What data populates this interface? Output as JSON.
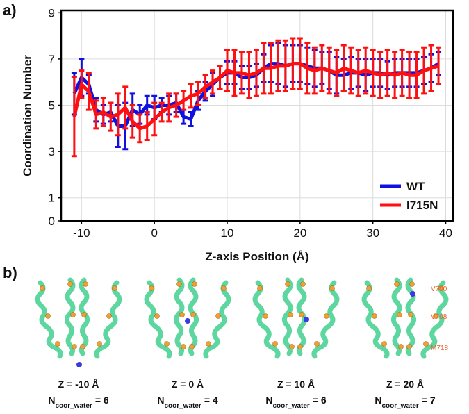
{
  "chart_data": {
    "type": "line",
    "panel_label": "a)",
    "xlabel": "Z-axis Position (Å)",
    "ylabel": "Coordination Number",
    "x": [
      -11,
      -10,
      -9,
      -8,
      -7,
      -6,
      -5,
      -4,
      -3,
      -2,
      -1,
      0,
      1,
      2,
      3,
      4,
      5,
      6,
      7,
      8,
      9,
      10,
      11,
      12,
      13,
      14,
      15,
      16,
      17,
      18,
      19,
      20,
      21,
      22,
      23,
      24,
      25,
      26,
      27,
      28,
      29,
      30,
      31,
      32,
      33,
      34,
      35,
      36,
      37,
      38,
      39
    ],
    "xlim": [
      -12.8,
      41
    ],
    "xticks": [
      -10,
      0,
      10,
      20,
      30,
      40
    ],
    "ylim": [
      0,
      9.1
    ],
    "yticks": [
      0,
      1,
      3,
      5,
      7,
      9
    ],
    "grid": true,
    "legend": "lower right",
    "series": [
      {
        "name": "WT",
        "color": "#1010e0",
        "values": [
          5.5,
          6.2,
          5.9,
          4.8,
          4.6,
          4.7,
          4.1,
          4.1,
          4.8,
          4.6,
          5.0,
          4.9,
          5.0,
          5.0,
          5.1,
          4.5,
          4.4,
          5.2,
          5.6,
          5.9,
          6.2,
          6.4,
          6.4,
          6.2,
          6.2,
          6.3,
          6.6,
          6.8,
          6.8,
          6.7,
          6.8,
          6.8,
          6.7,
          6.6,
          6.6,
          6.5,
          6.3,
          6.3,
          6.4,
          6.4,
          6.3,
          6.4,
          6.4,
          6.3,
          6.4,
          6.4,
          6.4,
          6.4,
          6.5,
          6.6,
          6.8
        ],
        "errors": [
          0.9,
          0.8,
          0.4,
          0.5,
          0.4,
          0.4,
          0.9,
          1.0,
          0.7,
          0.4,
          0.4,
          0.5,
          0.3,
          0.4,
          0.4,
          0.3,
          0.3,
          0.4,
          0.4,
          0.5,
          0.5,
          0.5,
          0.5,
          0.5,
          0.5,
          0.5,
          0.6,
          0.8,
          0.9,
          0.9,
          0.8,
          0.8,
          0.8,
          0.8,
          0.7,
          0.8,
          0.8,
          0.7,
          0.7,
          0.6,
          0.7,
          0.6,
          0.6,
          0.6,
          0.6,
          0.6,
          0.6,
          0.6,
          0.6,
          0.6,
          0.5
        ]
      },
      {
        "name": "I715N",
        "color": "#ff1010",
        "values": [
          4.5,
          5.9,
          5.6,
          4.6,
          4.7,
          4.5,
          4.6,
          4.9,
          4.3,
          4.0,
          4.1,
          4.4,
          4.7,
          4.9,
          5.0,
          5.2,
          5.4,
          5.5,
          5.8,
          6.0,
          6.2,
          6.5,
          6.4,
          6.4,
          6.3,
          6.4,
          6.6,
          6.6,
          6.7,
          6.7,
          6.8,
          6.8,
          6.6,
          6.5,
          6.6,
          6.5,
          6.4,
          6.6,
          6.5,
          6.4,
          6.5,
          6.4,
          6.3,
          6.4,
          6.3,
          6.4,
          6.3,
          6.3,
          6.5,
          6.6,
          6.7
        ],
        "errors": [
          1.7,
          0.6,
          0.8,
          0.6,
          0.6,
          0.6,
          0.9,
          0.9,
          0.7,
          0.6,
          0.6,
          0.7,
          0.4,
          0.6,
          0.5,
          0.4,
          0.5,
          0.5,
          0.5,
          0.5,
          0.5,
          0.9,
          1.0,
          0.9,
          1.0,
          1.0,
          1.1,
          1.1,
          1.1,
          1.1,
          1.1,
          1.1,
          1.1,
          1.0,
          1.0,
          1.0,
          1.0,
          1.0,
          1.0,
          1.0,
          1.0,
          1.0,
          1.0,
          1.0,
          1.0,
          1.0,
          1.0,
          1.0,
          1.0,
          1.0,
          0.8
        ]
      }
    ]
  },
  "panel_b": {
    "label": "b)",
    "residue_labels": [
      "V700",
      "V708",
      "M718"
    ],
    "structures": [
      {
        "caption": "Z = -10 Å",
        "symbol": "N",
        "subscript": "coor_water",
        "count": "= 6"
      },
      {
        "caption": "Z = 0 Å",
        "symbol": "N",
        "subscript": "coor_water",
        "count": "= 4"
      },
      {
        "caption": "Z = 10 Å",
        "symbol": "N",
        "subscript": "coor_water",
        "count": "= 6"
      },
      {
        "caption": "Z = 20 Å",
        "symbol": "N",
        "subscript": "coor_water",
        "count": "= 7"
      }
    ]
  }
}
